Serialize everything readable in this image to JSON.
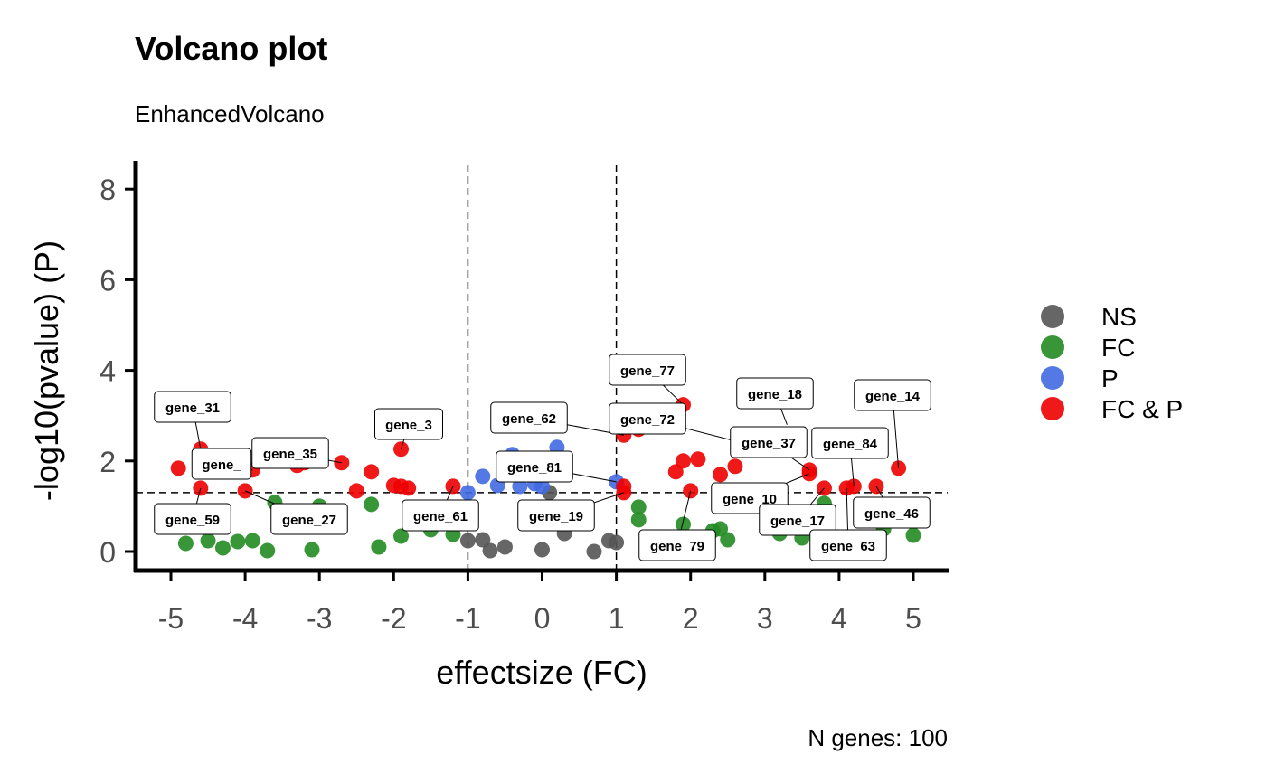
{
  "chart_data": {
    "type": "scatter",
    "title": "Volcano plot",
    "subtitle": "EnhancedVolcano",
    "xlabel": "effectsize (FC)",
    "ylabel": "-log10(pvalue) (P)",
    "caption": "N genes: 100",
    "xlim": [
      -5.5,
      5.5
    ],
    "ylim": [
      -0.4,
      8.6
    ],
    "xticks": [
      "-5",
      "-4",
      "-3",
      "-2",
      "-1",
      "0",
      "1",
      "2",
      "3",
      "4",
      "5"
    ],
    "yticks": [
      "0",
      "2",
      "4",
      "6",
      "8"
    ],
    "fc_cutoffs": [
      -1,
      1
    ],
    "p_cutoff_log10": 1.3,
    "legend_position": "right",
    "legend": [
      {
        "name": "NS",
        "color": "#555555"
      },
      {
        "name": "FC",
        "color": "#228b22"
      },
      {
        "name": "P",
        "color": "#4169e1"
      },
      {
        "name": "FC & P",
        "color": "#ee0000"
      }
    ],
    "series": [
      {
        "name": "NS",
        "points": [
          [
            -1.0,
            0.24
          ],
          [
            -0.8,
            0.26
          ],
          [
            -0.7,
            0.02
          ],
          [
            -0.5,
            0.1
          ],
          [
            0.1,
            1.3
          ],
          [
            0.0,
            0.04
          ],
          [
            0.3,
            0.4
          ],
          [
            0.7,
            0.0
          ],
          [
            0.9,
            0.24
          ],
          [
            1.0,
            0.2
          ]
        ]
      },
      {
        "name": "FC",
        "points": [
          [
            -4.8,
            0.18
          ],
          [
            -4.5,
            0.24
          ],
          [
            -4.3,
            0.08
          ],
          [
            -4.1,
            0.22
          ],
          [
            -3.9,
            0.24
          ],
          [
            -3.7,
            0.02
          ],
          [
            -3.6,
            1.08
          ],
          [
            -3.1,
            0.04
          ],
          [
            -3.0,
            1.0
          ],
          [
            -2.3,
            1.04
          ],
          [
            -2.2,
            0.1
          ],
          [
            -1.9,
            0.34
          ],
          [
            -1.5,
            0.48
          ],
          [
            -1.2,
            0.38
          ],
          [
            1.3,
            0.98
          ],
          [
            1.3,
            0.7
          ],
          [
            1.9,
            0.6
          ],
          [
            2.3,
            0.46
          ],
          [
            2.4,
            0.5
          ],
          [
            2.5,
            0.26
          ],
          [
            3.2,
            0.4
          ],
          [
            3.8,
            1.06
          ],
          [
            3.5,
            0.3
          ],
          [
            4.6,
            0.5
          ],
          [
            5.0,
            0.36
          ]
        ]
      },
      {
        "name": "P",
        "points": [
          [
            -1.0,
            1.3
          ],
          [
            -0.8,
            1.66
          ],
          [
            -0.6,
            1.46
          ],
          [
            -0.4,
            2.14
          ],
          [
            -0.3,
            1.44
          ],
          [
            -0.1,
            1.5
          ],
          [
            0.0,
            1.44
          ],
          [
            0.2,
            2.3
          ],
          [
            1.0,
            1.54
          ]
        ]
      },
      {
        "name": "FC & P",
        "points": [
          [
            -4.9,
            1.84
          ],
          [
            -4.6,
            2.26
          ],
          [
            -4.6,
            1.4
          ],
          [
            -4.0,
            1.34
          ],
          [
            -3.9,
            1.8
          ],
          [
            -3.3,
            1.9
          ],
          [
            -3.2,
            1.96
          ],
          [
            -2.7,
            1.96
          ],
          [
            -2.5,
            1.34
          ],
          [
            -2.3,
            1.76
          ],
          [
            -2.0,
            1.46
          ],
          [
            -1.9,
            1.44
          ],
          [
            -1.8,
            1.4
          ],
          [
            -1.9,
            2.26
          ],
          [
            -1.2,
            1.44
          ],
          [
            1.1,
            1.3
          ],
          [
            1.1,
            1.44
          ],
          [
            1.1,
            2.57
          ],
          [
            1.3,
            2.7
          ],
          [
            1.7,
            3.1
          ],
          [
            1.9,
            3.24
          ],
          [
            1.8,
            1.76
          ],
          [
            1.9,
            2.0
          ],
          [
            2.1,
            2.04
          ],
          [
            2.0,
            1.34
          ],
          [
            2.4,
            1.7
          ],
          [
            2.6,
            1.88
          ],
          [
            3.6,
            1.8
          ],
          [
            3.6,
            1.72
          ],
          [
            3.8,
            1.4
          ],
          [
            4.1,
            1.4
          ],
          [
            4.2,
            1.44
          ],
          [
            4.5,
            1.44
          ],
          [
            4.8,
            1.84
          ]
        ]
      }
    ],
    "labels": [
      {
        "gene": "gene_31",
        "x": -4.6,
        "y": 2.26
      },
      {
        "gene": "gene_",
        "x": -3.9,
        "y": 1.8
      },
      {
        "gene": "gene_35",
        "x": -2.7,
        "y": 1.96
      },
      {
        "gene": "gene_3",
        "x": -1.9,
        "y": 2.26
      },
      {
        "gene": "gene_59",
        "x": -4.6,
        "y": 1.4
      },
      {
        "gene": "gene_27",
        "x": -4.0,
        "y": 1.34
      },
      {
        "gene": "gene_61",
        "x": -1.2,
        "y": 1.44
      },
      {
        "gene": "gene_62",
        "x": 1.1,
        "y": 2.57
      },
      {
        "gene": "gene_81",
        "x": 1.0,
        "y": 1.54
      },
      {
        "gene": "gene_19",
        "x": 1.1,
        "y": 1.3
      },
      {
        "gene": "gene_77",
        "x": 1.9,
        "y": 3.24
      },
      {
        "gene": "gene_72",
        "x": 2.6,
        "y": 2.44
      },
      {
        "gene": "gene_18",
        "x": 3.3,
        "y": 2.8
      },
      {
        "gene": "gene_14",
        "x": 4.8,
        "y": 1.84
      },
      {
        "gene": "gene_37",
        "x": 3.6,
        "y": 1.8
      },
      {
        "gene": "gene_84",
        "x": 4.2,
        "y": 1.44
      },
      {
        "gene": "gene_10",
        "x": 3.6,
        "y": 1.72
      },
      {
        "gene": "gene_17",
        "x": 3.8,
        "y": 1.4
      },
      {
        "gene": "gene_46",
        "x": 4.5,
        "y": 1.44
      },
      {
        "gene": "gene_63",
        "x": 4.1,
        "y": 1.4
      },
      {
        "gene": "gene_79",
        "x": 2.0,
        "y": 1.34
      }
    ]
  }
}
